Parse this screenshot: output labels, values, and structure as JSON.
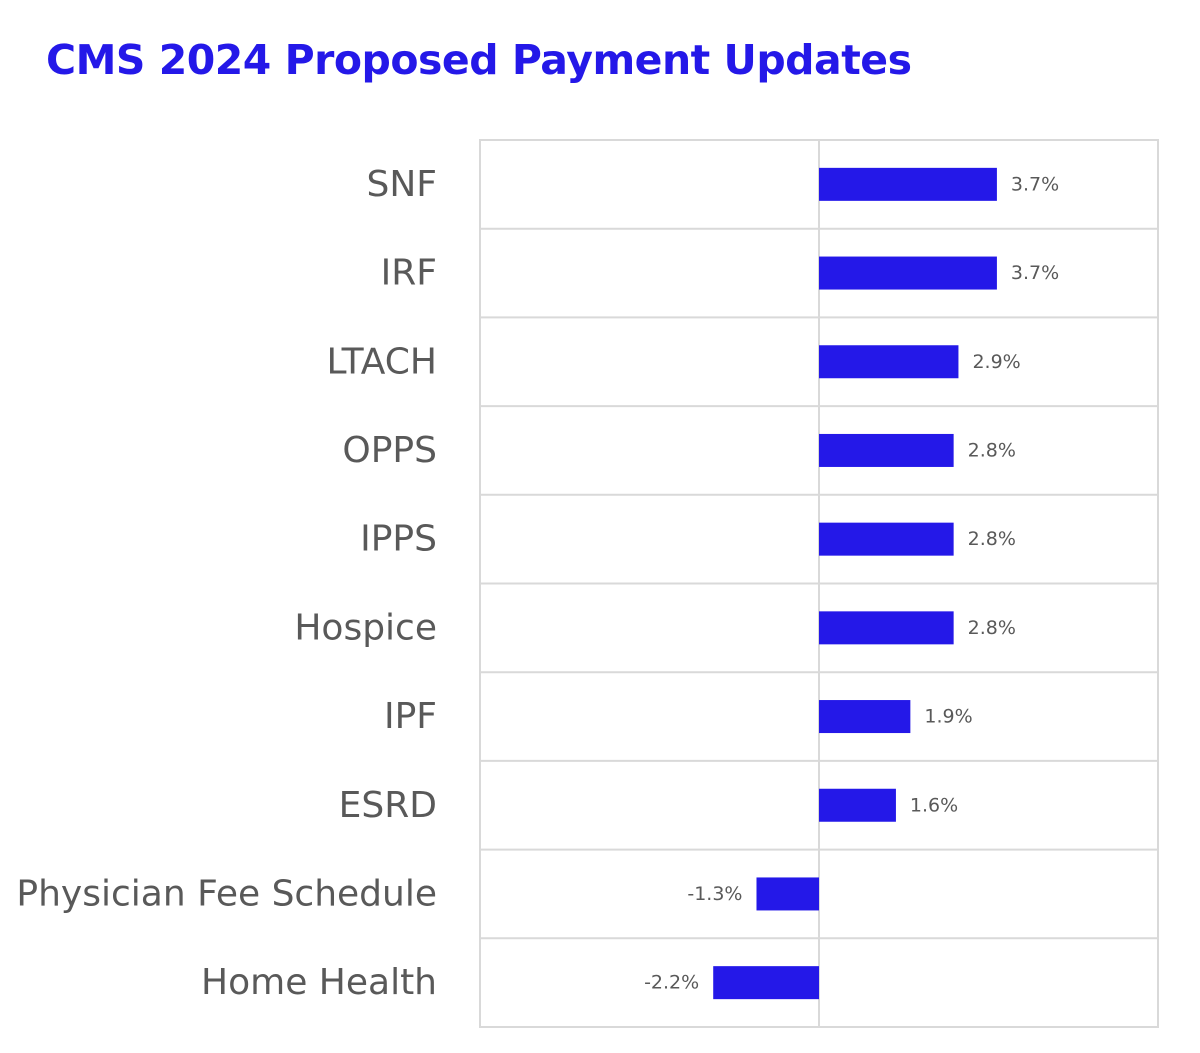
{
  "title": "CMS 2024 Proposed Payment Updates",
  "chart_data": {
    "type": "bar",
    "orientation": "horizontal",
    "title": "CMS 2024 Proposed Payment Updates",
    "xlabel": "",
    "ylabel": "",
    "categories": [
      "SNF",
      "IRF",
      "LTACH",
      "OPPS",
      "IPPS",
      "Hospice",
      "IPF",
      "ESRD",
      "Physician Fee Schedule",
      "Home Health"
    ],
    "values": [
      3.7,
      3.7,
      2.9,
      2.8,
      2.8,
      2.8,
      1.9,
      1.6,
      -1.3,
      -2.2
    ],
    "value_labels": [
      "3.7%",
      "3.7%",
      "2.9%",
      "2.8%",
      "2.8%",
      "2.8%",
      "1.9%",
      "1.6%",
      "-1.3%",
      "-2.2%"
    ],
    "xlim": [
      -7.05,
      7.05
    ],
    "grid": "horizontal row separators",
    "legend": "none",
    "bar_color": "#2418E8"
  }
}
